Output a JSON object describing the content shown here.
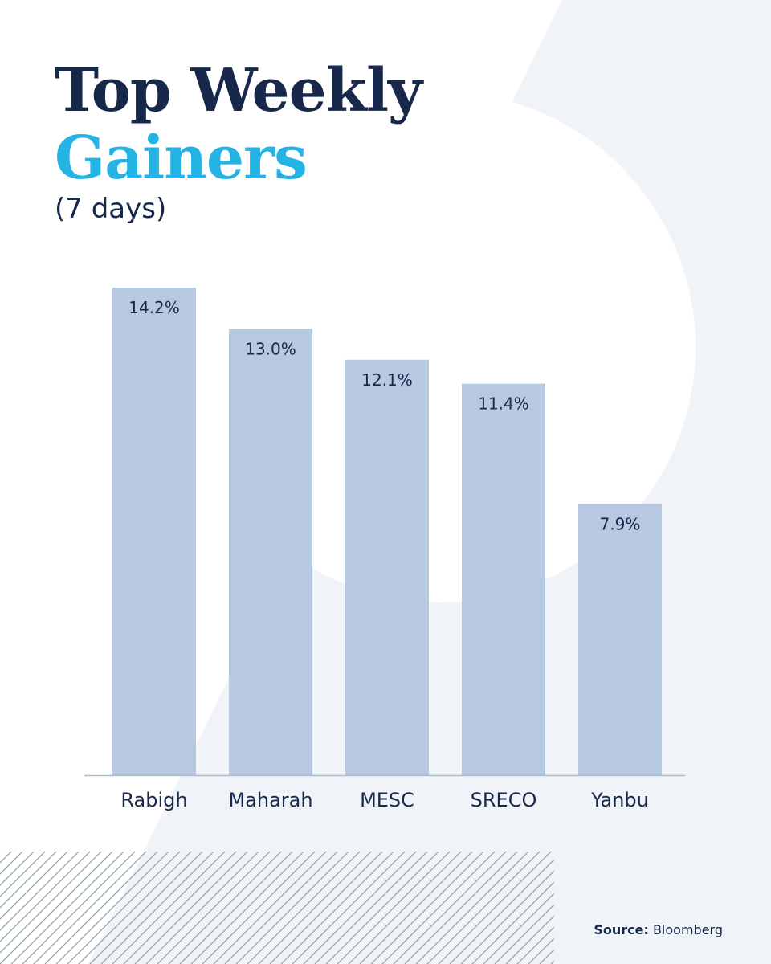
{
  "title": {
    "line1": "Top Weekly",
    "line2": "Gainers"
  },
  "subtitle": "(7 days)",
  "source": {
    "label": "Source:",
    "value": "Bloomberg"
  },
  "colors": {
    "title_dark": "#17284a",
    "title_accent": "#25b3e6",
    "bar": "#b6c9e0",
    "background_shape": "#f0f4f8",
    "axis": "#a9bcd0",
    "hatch": "#8aa0aa"
  },
  "chart_data": {
    "type": "bar",
    "categories": [
      "Rabigh",
      "Maharah",
      "MESC",
      "SRECO",
      "Yanbu"
    ],
    "values": [
      14.2,
      13.0,
      12.1,
      11.4,
      7.9
    ],
    "data_labels": [
      "14.2%",
      "13.0%",
      "12.1%",
      "11.4%",
      "7.9%"
    ],
    "unit": "%",
    "ylim": [
      0,
      14.2
    ],
    "grid": false,
    "legend": "none"
  }
}
